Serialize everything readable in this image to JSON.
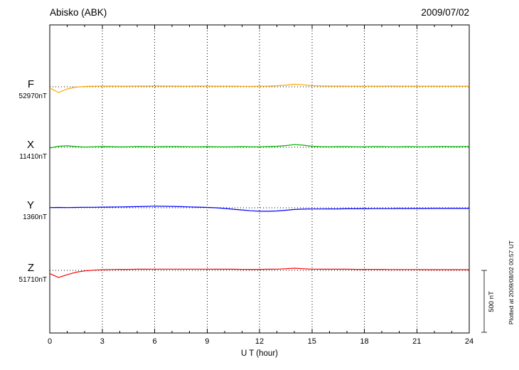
{
  "header": {
    "station": "Abisko (ABK)",
    "date": "2009/07/02"
  },
  "footer": {
    "plotted_at": "Plotted at 2009/08/02 00:57 UT"
  },
  "chart_data": {
    "type": "line",
    "title": "Abisko (ABK)",
    "date": "2009/07/02",
    "xlabel": "U T (hour)",
    "x_range": [
      0,
      24
    ],
    "x_tick_step": 3,
    "x_ticks": [
      0,
      3,
      6,
      9,
      12,
      15,
      18,
      21,
      24
    ],
    "x_step_hours": 0.5,
    "grid": "dotted",
    "scale_bar": {
      "label": "500 nT",
      "span_nT": 500
    },
    "series": [
      {
        "name": "F",
        "baseline_label": "52970nT",
        "baseline_nT": 52970,
        "color": "#ffa500",
        "offsets_nT": [
          -10,
          -46,
          -17,
          -3,
          3,
          5,
          5,
          6,
          5,
          5,
          6,
          6,
          7,
          6,
          6,
          5,
          5,
          6,
          6,
          5,
          5,
          5,
          4,
          4,
          5,
          6,
          8,
          14,
          20,
          16,
          9,
          7,
          6,
          6,
          5,
          5,
          5,
          5,
          5,
          6,
          5,
          5,
          5,
          5,
          5,
          5,
          5,
          5,
          5
        ]
      },
      {
        "name": "X",
        "baseline_label": "11410nT",
        "baseline_nT": 11410,
        "color": "#00b400",
        "offsets_nT": [
          -6,
          8,
          12,
          6,
          2,
          4,
          6,
          5,
          3,
          4,
          6,
          5,
          4,
          5,
          6,
          5,
          4,
          4,
          5,
          4,
          3,
          4,
          5,
          4,
          4,
          6,
          8,
          14,
          22,
          17,
          8,
          5,
          4,
          5,
          5,
          4,
          4,
          5,
          5,
          4,
          4,
          5,
          4,
          4,
          5,
          6,
          5,
          5,
          7
        ]
      },
      {
        "name": "Y",
        "baseline_label": "1360nT",
        "baseline_nT": 1360,
        "color": "#0000ff",
        "offsets_nT": [
          2,
          3,
          2,
          3,
          4,
          4,
          5,
          6,
          7,
          8,
          9,
          11,
          13,
          12,
          11,
          9,
          7,
          5,
          3,
          0,
          -5,
          -12,
          -18,
          -24,
          -28,
          -28,
          -26,
          -20,
          -14,
          -11,
          -10,
          -10,
          -9,
          -9,
          -8,
          -8,
          -8,
          -7,
          -7,
          -7,
          -6,
          -6,
          -6,
          -6,
          -5,
          -5,
          -5,
          -5,
          -5
        ]
      },
      {
        "name": "Z",
        "baseline_label": "51710nT",
        "baseline_nT": 51710,
        "color": "#ff0000",
        "offsets_nT": [
          -25,
          -57,
          -35,
          -15,
          -4,
          2,
          5,
          7,
          8,
          8,
          9,
          9,
          10,
          10,
          10,
          10,
          10,
          10,
          10,
          9,
          9,
          9,
          8,
          8,
          8,
          9,
          10,
          13,
          17,
          13,
          10,
          9,
          9,
          9,
          9,
          8,
          8,
          8,
          8,
          7,
          7,
          7,
          7,
          6,
          6,
          6,
          6,
          6,
          6
        ]
      }
    ]
  }
}
